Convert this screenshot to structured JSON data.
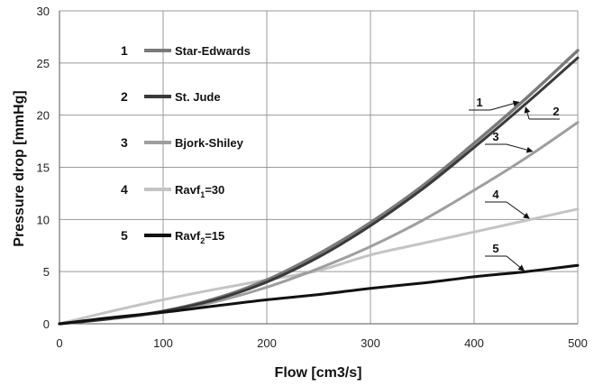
{
  "chart_data": {
    "type": "line",
    "xlabel": "Flow [cm3/s]",
    "ylabel": "Pressure drop [mmHg]",
    "xlim": [
      0,
      500
    ],
    "ylim": [
      0,
      30
    ],
    "x_ticks": [
      "0",
      "100",
      "200",
      "300",
      "400",
      "500"
    ],
    "y_ticks": [
      "0",
      "5",
      "10",
      "15",
      "20",
      "25",
      "30"
    ],
    "grid": true,
    "legend_position": "top-left",
    "series": [
      {
        "number": "1",
        "name": "Star-Edwards",
        "color": "#7a7a7a",
        "width": 3.5,
        "x": [
          0,
          50,
          100,
          150,
          200,
          250,
          300,
          350,
          400,
          450,
          500
        ],
        "y": [
          0,
          0.5,
          1.2,
          2.4,
          4.2,
          6.7,
          9.7,
          13.2,
          17.3,
          21.6,
          26.2
        ]
      },
      {
        "number": "2",
        "name": "St. Jude",
        "color": "#3a3a3a",
        "width": 3,
        "x": [
          0,
          50,
          100,
          150,
          200,
          250,
          300,
          350,
          400,
          450,
          500
        ],
        "y": [
          0,
          0.5,
          1.2,
          2.3,
          4.0,
          6.4,
          9.4,
          12.9,
          16.9,
          21.1,
          25.5
        ]
      },
      {
        "number": "3",
        "name": "Bjork-Shiley",
        "color": "#9e9e9e",
        "width": 3,
        "x": [
          0,
          50,
          100,
          150,
          200,
          250,
          300,
          350,
          400,
          450,
          500
        ],
        "y": [
          0,
          0.5,
          1.1,
          2.1,
          3.5,
          5.3,
          7.4,
          9.9,
          12.8,
          15.9,
          19.3
        ]
      },
      {
        "number": "4",
        "name_parts": [
          "Ravf",
          "1",
          "=30"
        ],
        "color": "#c4c4c4",
        "width": 3,
        "x": [
          0,
          50,
          100,
          150,
          200,
          250,
          300,
          350,
          400,
          450,
          500
        ],
        "y": [
          0,
          1.2,
          2.3,
          3.3,
          4.2,
          5.1,
          6.6,
          7.7,
          8.8,
          9.9,
          11.0
        ]
      },
      {
        "number": "5",
        "name_parts": [
          "Ravf",
          "2",
          "=15"
        ],
        "color": "#111111",
        "width": 3,
        "x": [
          0,
          50,
          100,
          150,
          200,
          250,
          300,
          350,
          400,
          450,
          500
        ],
        "y": [
          0,
          0.6,
          1.1,
          1.7,
          2.3,
          2.8,
          3.4,
          3.9,
          4.5,
          5.0,
          5.6
        ]
      }
    ],
    "annotations": [
      {
        "label": "1",
        "series": 0,
        "at_x": 445
      },
      {
        "label": "2",
        "series": 1,
        "at_x": 448
      },
      {
        "label": "3",
        "series": 2,
        "at_x": 458
      },
      {
        "label": "4",
        "series": 3,
        "at_x": 455
      },
      {
        "label": "5",
        "series": 4,
        "at_x": 450
      }
    ]
  }
}
